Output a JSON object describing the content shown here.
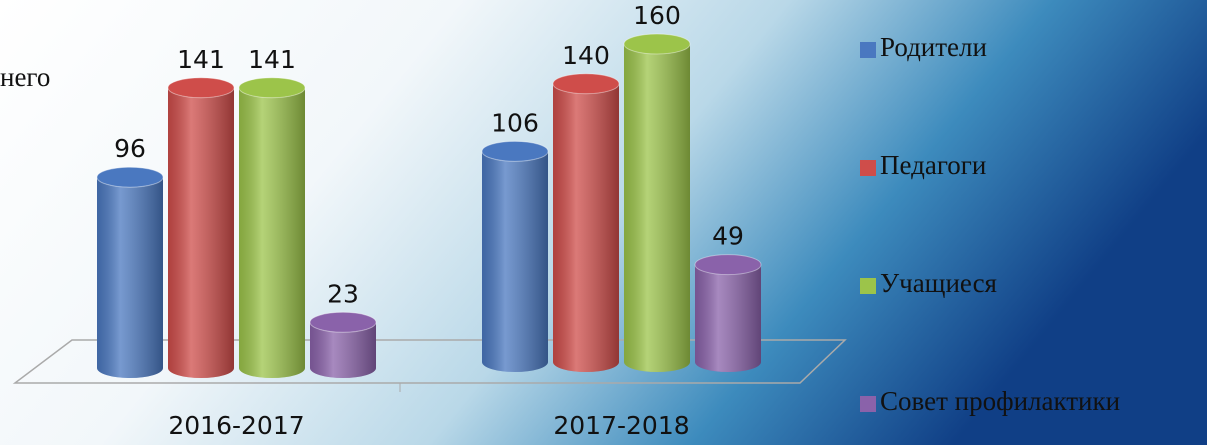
{
  "chart_data": {
    "type": "bar3d",
    "annotation": "него",
    "categories": [
      "2016-2017",
      "2017-2018"
    ],
    "series": [
      {
        "name": "Родители",
        "color": "#4a78c0",
        "values": [
          96,
          106
        ]
      },
      {
        "name": "Педагоги",
        "color": "#cf4d4a",
        "values": [
          141,
          140
        ]
      },
      {
        "name": "Учащиеся",
        "color": "#9cc44a",
        "values": [
          141,
          160
        ]
      },
      {
        "name": "Совет профилактики",
        "color": "#8a62aa",
        "values": [
          23,
          49
        ]
      }
    ]
  }
}
